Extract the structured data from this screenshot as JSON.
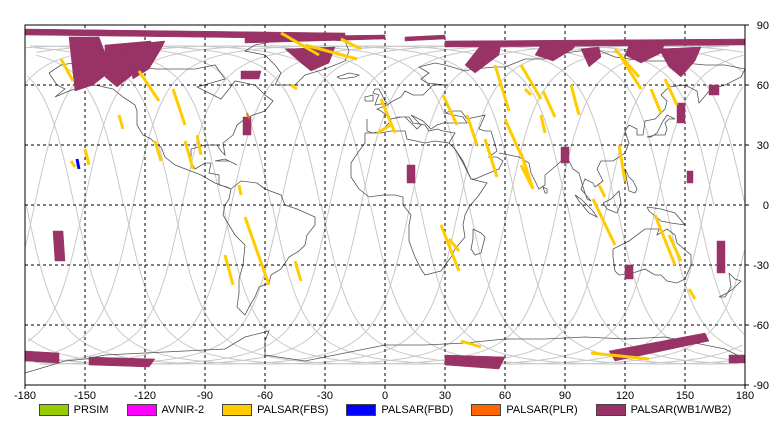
{
  "chart_data": {
    "type": "map",
    "xlim": [
      -180,
      180
    ],
    "ylim": [
      -90,
      90
    ],
    "x_ticks": [
      "-180",
      "-150",
      "-120",
      "-90",
      "-60",
      "-30",
      "0",
      "30",
      "60",
      "90",
      "120",
      "150",
      "180"
    ],
    "y_ticks": [
      "90",
      "60",
      "30",
      "0",
      "-30",
      "-60",
      "-90"
    ],
    "grid": true,
    "legend_placement": "bottom",
    "legend": [
      {
        "label": "PRSIM",
        "color": "#99cc00"
      },
      {
        "label": "AVNIR-2",
        "color": "#ff00ff"
      },
      {
        "label": "PALSAR(FBS)",
        "color": "#ffcc00"
      },
      {
        "label": "PALSAR(FBD)",
        "color": "#0000ff"
      },
      {
        "label": "PALSAR(PLR)",
        "color": "#ff6600"
      },
      {
        "label": "PALSAR(WB1/WB2)",
        "color": "#993366"
      }
    ],
    "wb_swaths": [
      [
        [
          -180,
          88
        ],
        [
          -20,
          86
        ],
        [
          -20,
          83
        ],
        [
          -180,
          85
        ]
      ],
      [
        [
          -158,
          84
        ],
        [
          -143,
          84
        ],
        [
          -140,
          76
        ],
        [
          -137,
          67
        ],
        [
          -146,
          60
        ],
        [
          -155,
          57
        ]
      ],
      [
        [
          -140,
          80
        ],
        [
          -117,
          82
        ],
        [
          -118,
          76
        ],
        [
          -120,
          70
        ],
        [
          -134,
          59
        ],
        [
          -140,
          64
        ]
      ],
      [
        [
          -130,
          80
        ],
        [
          -110,
          82
        ],
        [
          -112,
          78
        ],
        [
          -118,
          68
        ],
        [
          -126,
          63
        ]
      ],
      [
        [
          -70,
          84
        ],
        [
          0,
          85
        ],
        [
          0,
          83
        ],
        [
          -70,
          81
        ]
      ],
      [
        [
          -50,
          78
        ],
        [
          -25,
          79
        ],
        [
          -28,
          71
        ],
        [
          -37,
          67
        ],
        [
          -42,
          71
        ]
      ],
      [
        [
          30,
          82
        ],
        [
          180,
          83
        ],
        [
          180,
          80
        ],
        [
          30,
          79
        ]
      ],
      [
        [
          10,
          84
        ],
        [
          30,
          85
        ],
        [
          30,
          83
        ],
        [
          10,
          82
        ]
      ],
      [
        [
          48,
          80
        ],
        [
          58,
          81
        ],
        [
          57,
          75
        ],
        [
          45,
          66
        ],
        [
          40,
          70
        ]
      ],
      [
        [
          78,
          80
        ],
        [
          96,
          81
        ],
        [
          94,
          78
        ],
        [
          84,
          72
        ],
        [
          75,
          75
        ]
      ],
      [
        [
          98,
          78
        ],
        [
          107,
          79
        ],
        [
          108,
          74
        ],
        [
          102,
          69
        ]
      ],
      [
        [
          122,
          80
        ],
        [
          140,
          81
        ],
        [
          138,
          76
        ],
        [
          128,
          71
        ],
        [
          120,
          75
        ]
      ],
      [
        [
          137,
          78
        ],
        [
          158,
          79
        ],
        [
          155,
          72
        ],
        [
          148,
          64
        ],
        [
          142,
          69
        ]
      ],
      [
        [
          -72,
          67
        ],
        [
          -62,
          67
        ],
        [
          -63,
          63
        ],
        [
          -72,
          63
        ]
      ],
      [
        [
          -166,
          -13
        ],
        [
          -161,
          -13
        ],
        [
          -160,
          -28
        ],
        [
          -165,
          -28
        ]
      ],
      [
        [
          88,
          29
        ],
        [
          92,
          29
        ],
        [
          92,
          21
        ],
        [
          88,
          21
        ]
      ],
      [
        [
          11,
          20
        ],
        [
          15,
          20
        ],
        [
          15,
          11
        ],
        [
          11,
          11
        ]
      ],
      [
        [
          -71,
          44
        ],
        [
          -67,
          44
        ],
        [
          -67,
          35
        ],
        [
          -71,
          35
        ]
      ],
      [
        [
          146,
          51
        ],
        [
          150,
          51
        ],
        [
          150,
          41
        ],
        [
          146,
          41
        ]
      ],
      [
        [
          -180,
          -73
        ],
        [
          -163,
          -74
        ],
        [
          -163,
          -79
        ],
        [
          -180,
          -78
        ]
      ],
      [
        [
          -148,
          -76
        ],
        [
          -115,
          -77
        ],
        [
          -118,
          -81
        ],
        [
          -148,
          -80
        ]
      ],
      [
        [
          30,
          -75
        ],
        [
          60,
          -76
        ],
        [
          57,
          -82
        ],
        [
          30,
          -80
        ]
      ],
      [
        [
          112,
          -73
        ],
        [
          160,
          -64
        ],
        [
          162,
          -68
        ],
        [
          115,
          -78
        ]
      ],
      [
        [
          172,
          -75
        ],
        [
          180,
          -75
        ],
        [
          180,
          -79
        ],
        [
          172,
          -79
        ]
      ],
      [
        [
          162,
          60
        ],
        [
          167,
          60
        ],
        [
          167,
          55
        ],
        [
          162,
          55
        ]
      ],
      [
        [
          151,
          17
        ],
        [
          154,
          17
        ],
        [
          154,
          11
        ],
        [
          151,
          11
        ]
      ],
      [
        [
          166,
          -18
        ],
        [
          170,
          -18
        ],
        [
          170,
          -34
        ],
        [
          166,
          -34
        ]
      ],
      [
        [
          120,
          -30
        ],
        [
          124,
          -30
        ],
        [
          124,
          -37
        ],
        [
          120,
          -37
        ]
      ]
    ],
    "fbs_tracks": [
      [
        [
          -162,
          73
        ],
        [
          -156,
          62
        ]
      ],
      [
        [
          -123,
          67
        ],
        [
          -113,
          52
        ]
      ],
      [
        [
          -106,
          58
        ],
        [
          -100,
          40
        ]
      ],
      [
        [
          -133,
          45
        ],
        [
          -131,
          38
        ]
      ],
      [
        [
          -150,
          28
        ],
        [
          -148,
          20
        ]
      ],
      [
        [
          -70,
          -6
        ],
        [
          -58,
          -40
        ]
      ],
      [
        [
          -73,
          10
        ],
        [
          -72,
          5
        ]
      ],
      [
        [
          -100,
          32
        ],
        [
          -96,
          18
        ]
      ],
      [
        [
          -115,
          32
        ],
        [
          -112,
          22
        ]
      ],
      [
        [
          -80,
          -25
        ],
        [
          -76,
          -40
        ]
      ],
      [
        [
          -40,
          80
        ],
        [
          -14,
          73
        ]
      ],
      [
        [
          -52,
          86
        ],
        [
          -33,
          75
        ]
      ],
      [
        [
          -22,
          83
        ],
        [
          -12,
          78
        ]
      ],
      [
        [
          -2,
          53
        ],
        [
          5,
          36
        ]
      ],
      [
        [
          3,
          40
        ],
        [
          -4,
          36
        ]
      ],
      [
        [
          29,
          55
        ],
        [
          36,
          40
        ]
      ],
      [
        [
          41,
          45
        ],
        [
          46,
          30
        ]
      ],
      [
        [
          50,
          33
        ],
        [
          56,
          14
        ]
      ],
      [
        [
          55,
          70
        ],
        [
          62,
          47
        ]
      ],
      [
        [
          68,
          70
        ],
        [
          78,
          53
        ]
      ],
      [
        [
          79,
          57
        ],
        [
          85,
          44
        ]
      ],
      [
        [
          93,
          60
        ],
        [
          97,
          45
        ]
      ],
      [
        [
          60,
          43
        ],
        [
          68,
          25
        ]
      ],
      [
        [
          68,
          26
        ],
        [
          74,
          8
        ]
      ],
      [
        [
          115,
          78
        ],
        [
          127,
          64
        ]
      ],
      [
        [
          118,
          74
        ],
        [
          128,
          58
        ]
      ],
      [
        [
          133,
          58
        ],
        [
          138,
          46
        ]
      ],
      [
        [
          140,
          63
        ],
        [
          146,
          50
        ]
      ],
      [
        [
          117,
          30
        ],
        [
          120,
          12
        ]
      ],
      [
        [
          104,
          3
        ],
        [
          115,
          -20
        ]
      ],
      [
        [
          28,
          -10
        ],
        [
          37,
          -33
        ]
      ],
      [
        [
          32,
          -17
        ],
        [
          37,
          -23
        ]
      ],
      [
        [
          68,
          20
        ],
        [
          74,
          8
        ]
      ],
      [
        [
          78,
          45
        ],
        [
          80,
          36
        ]
      ],
      [
        [
          107,
          10
        ],
        [
          110,
          4
        ]
      ],
      [
        [
          135,
          -5
        ],
        [
          145,
          -30
        ]
      ],
      [
        [
          142,
          -15
        ],
        [
          148,
          -28
        ]
      ],
      [
        [
          152,
          -42
        ],
        [
          155,
          -47
        ]
      ],
      [
        [
          -45,
          -28
        ],
        [
          -42,
          -38
        ]
      ],
      [
        [
          -47,
          60
        ],
        [
          -44,
          58
        ]
      ],
      [
        [
          38,
          -68
        ],
        [
          48,
          -71
        ]
      ],
      [
        [
          103,
          -74
        ],
        [
          132,
          -77
        ]
      ],
      [
        [
          -94,
          35
        ],
        [
          -92,
          25
        ]
      ],
      [
        [
          70,
          58
        ],
        [
          73,
          55
        ]
      ],
      [
        [
          -157,
          22
        ],
        [
          -155,
          19
        ]
      ]
    ],
    "fbd_tracks": [
      [
        [
          -154,
          23
        ],
        [
          -153,
          18
        ]
      ]
    ],
    "plr_tracks": [
      [
        [
          -69,
          46
        ],
        [
          -68,
          43
        ]
      ]
    ]
  }
}
